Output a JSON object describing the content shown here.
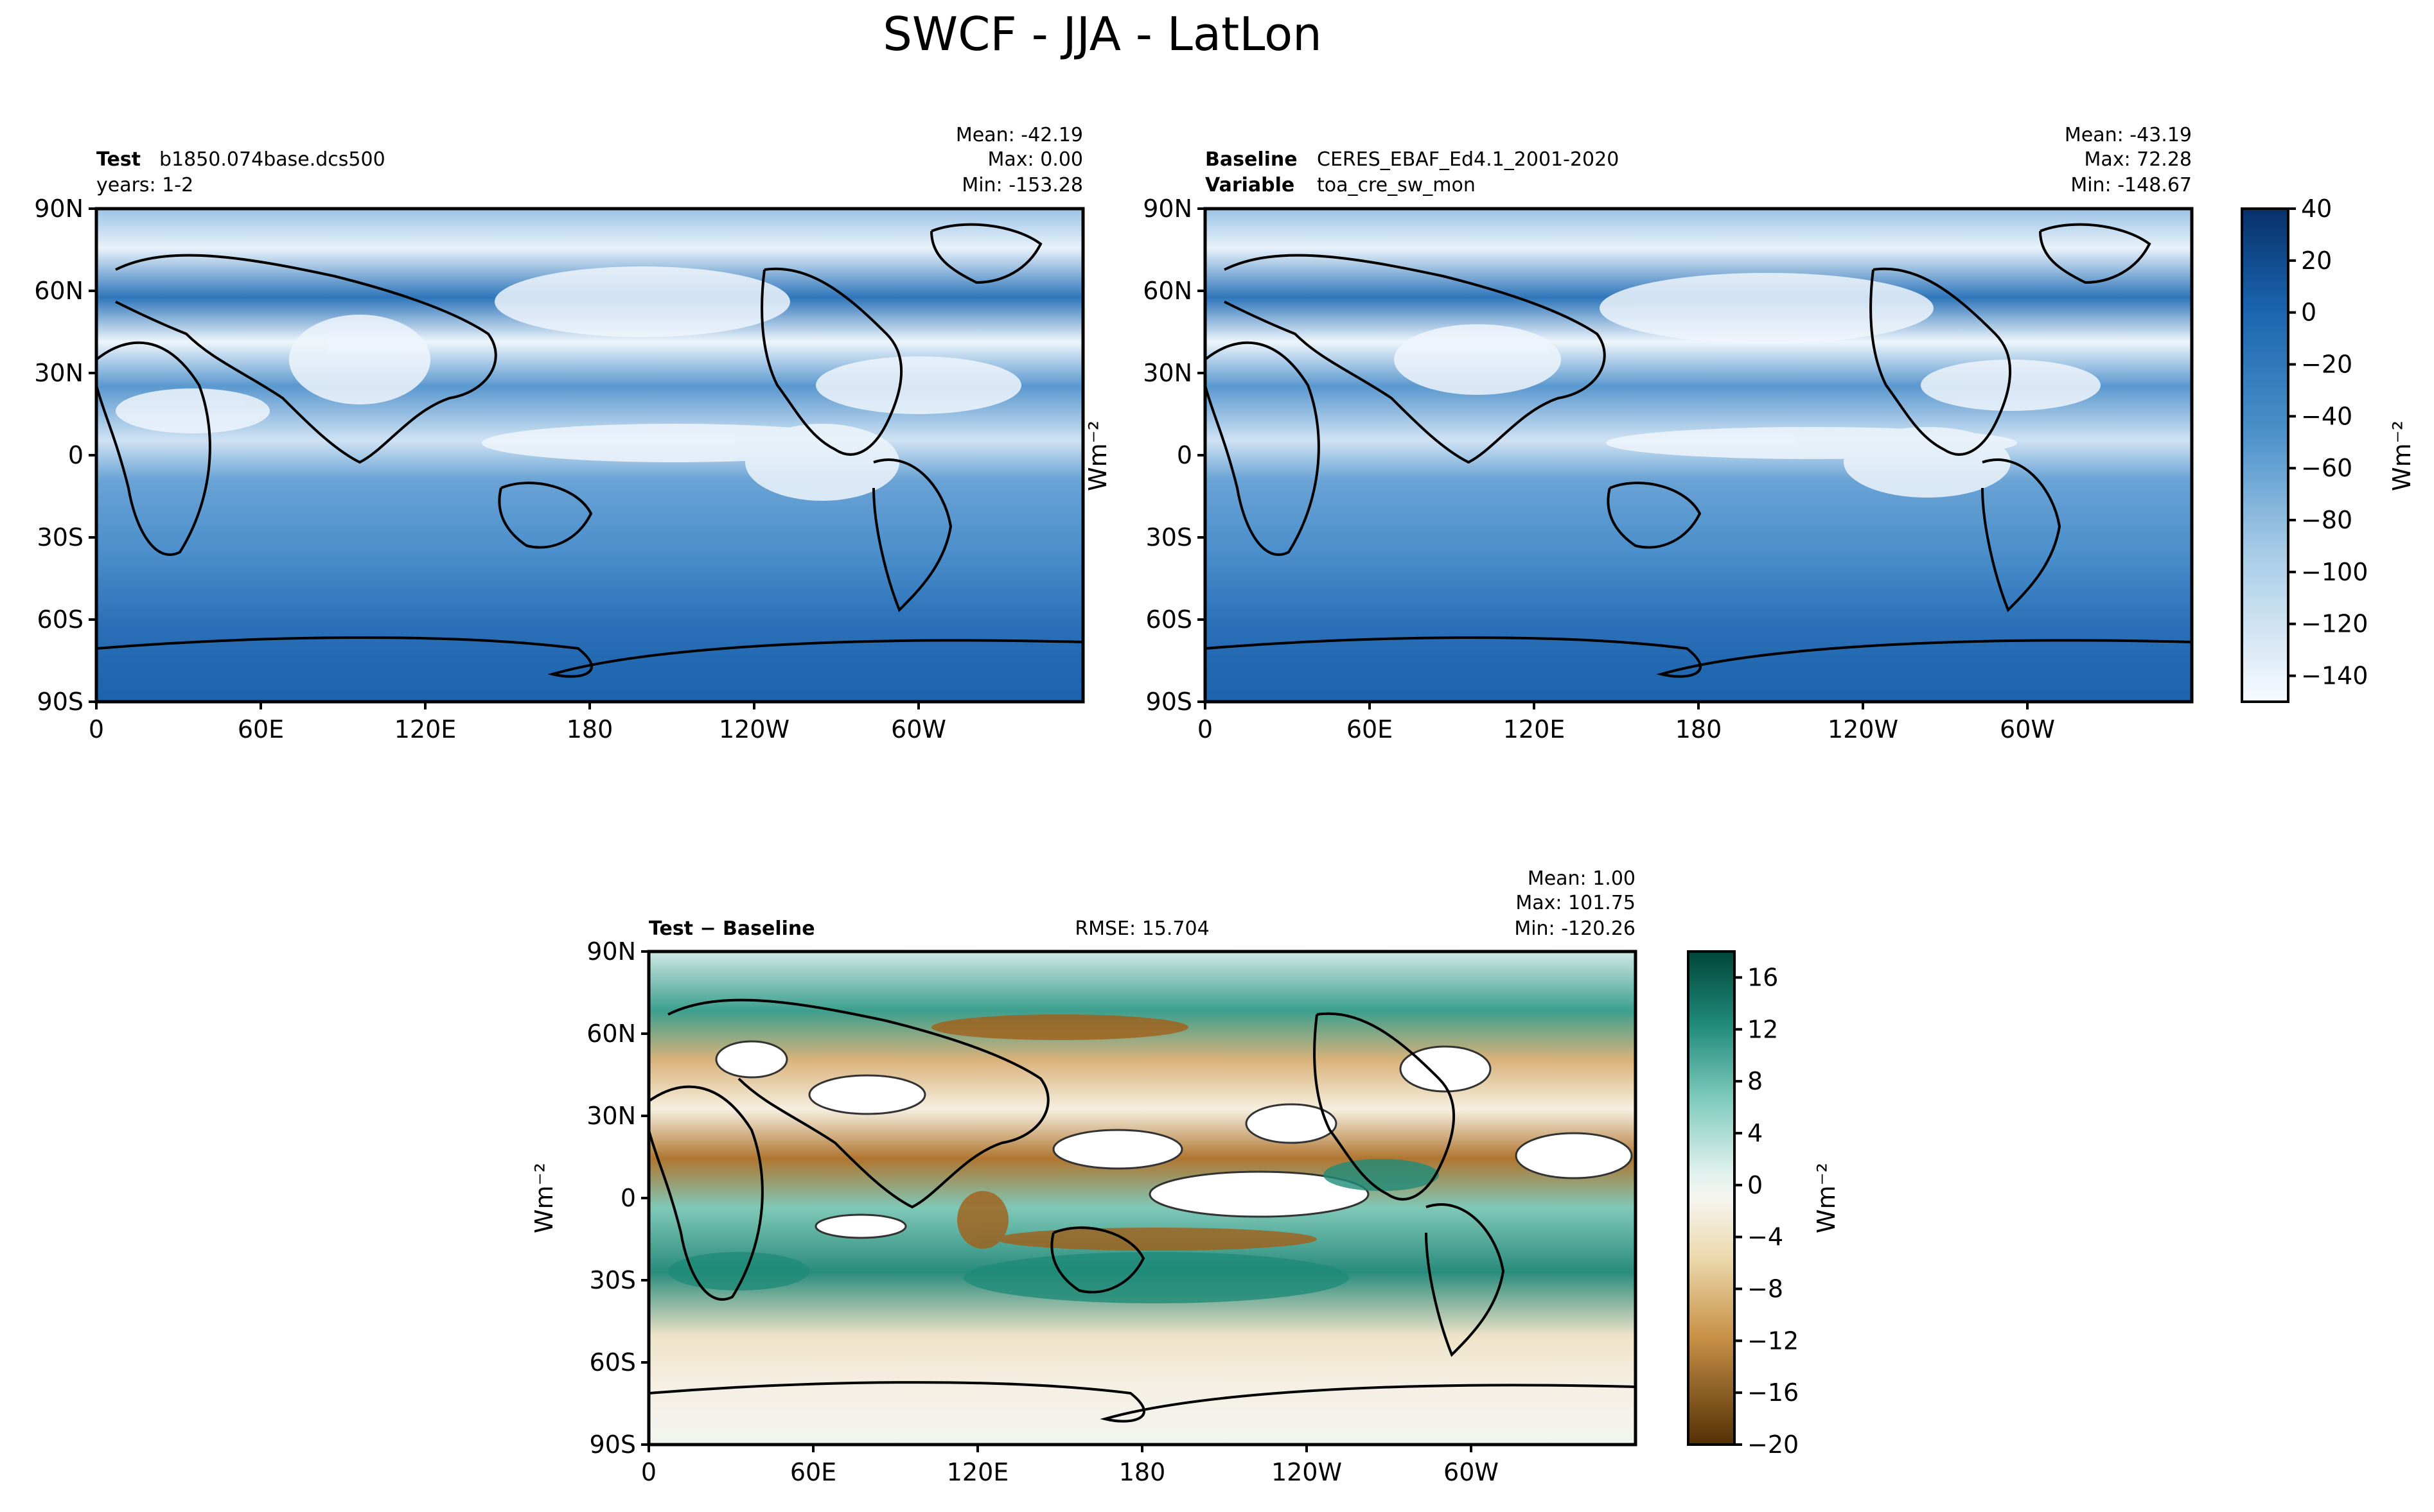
{
  "title": "SWCF - JJA - LatLon",
  "panels": {
    "test": {
      "label_bold": "Test",
      "label_value": "b1850.074base.dcs500",
      "label2": "years: 1-2",
      "stats": [
        "Mean: -42.19",
        "Max:  0.00",
        "Min: -153.28"
      ],
      "ylabel": "Wm⁻²"
    },
    "baseline": {
      "label_bold": "Baseline",
      "label_value": "CERES_EBAF_Ed4.1_2001-2020",
      "label2_bold": "Variable",
      "label2_value": "toa_cre_sw_mon",
      "stats": [
        "Mean: -43.19",
        "Max: 72.28",
        "Min: -148.67"
      ]
    },
    "diff": {
      "label_bold": "Test − Baseline",
      "rmse": "RMSE: 15.704",
      "stats": [
        "Mean:  1.00",
        "Max: 101.75",
        "Min: -120.26"
      ],
      "ylabel": "Wm⁻²"
    }
  },
  "colors": {
    "frame": "#000000",
    "map_blue_dark": "#1b63ad",
    "map_blue_mid": "#3b82c3",
    "map_blue_light": "#8dbbe0",
    "map_white": "#f4f8fc",
    "diff_green": "#2a9d8f",
    "diff_teal_light": "#bfe6de",
    "diff_brown": "#a8671f",
    "diff_tan": "#e6c995",
    "coast": "#000000"
  },
  "chart_data": [
    {
      "type": "heatmap",
      "name": "Test",
      "title": "Test: b1850.074base.dcs500 (years: 1-2)",
      "variable": "SWCF",
      "units": "Wm⁻²",
      "x_ticks": [
        "0",
        "60E",
        "120E",
        "180",
        "120W",
        "60W"
      ],
      "y_ticks": [
        "90N",
        "60N",
        "30N",
        "0",
        "30S",
        "60S",
        "90S"
      ],
      "xlim": [
        0,
        360
      ],
      "ylim": [
        -90,
        90
      ],
      "mean": -42.19,
      "max": 0.0,
      "min": -153.28
    },
    {
      "type": "heatmap",
      "name": "Baseline",
      "title": "Baseline: CERES_EBAF_Ed4.1_2001-2020",
      "variable": "toa_cre_sw_mon",
      "units": "Wm⁻²",
      "x_ticks": [
        "0",
        "60E",
        "120E",
        "180",
        "120W",
        "60W"
      ],
      "y_ticks": [
        "90N",
        "60N",
        "30N",
        "0",
        "30S",
        "60S",
        "90S"
      ],
      "xlim": [
        0,
        360
      ],
      "ylim": [
        -90,
        90
      ],
      "mean": -43.19,
      "max": 72.28,
      "min": -148.67,
      "colorbar": {
        "label": "Wm⁻²",
        "ticks": [
          "40",
          "20",
          "0",
          "−20",
          "−40",
          "−60",
          "−80",
          "−100",
          "−120",
          "−140"
        ],
        "range": [
          -150,
          40
        ]
      }
    },
    {
      "type": "heatmap",
      "name": "Test - Baseline",
      "title": "Test − Baseline",
      "units": "Wm⁻²",
      "x_ticks": [
        "0",
        "60E",
        "120E",
        "180",
        "120W",
        "60W"
      ],
      "y_ticks": [
        "90N",
        "60N",
        "30N",
        "0",
        "30S",
        "60S",
        "90S"
      ],
      "xlim": [
        0,
        360
      ],
      "ylim": [
        -90,
        90
      ],
      "rmse": 15.704,
      "mean": 1.0,
      "max": 101.75,
      "min": -120.26,
      "colorbar": {
        "label": "Wm⁻²",
        "ticks": [
          "16",
          "12",
          "8",
          "4",
          "0",
          "−4",
          "−8",
          "−12",
          "−16",
          "−20"
        ],
        "range": [
          -20,
          18
        ]
      }
    }
  ]
}
